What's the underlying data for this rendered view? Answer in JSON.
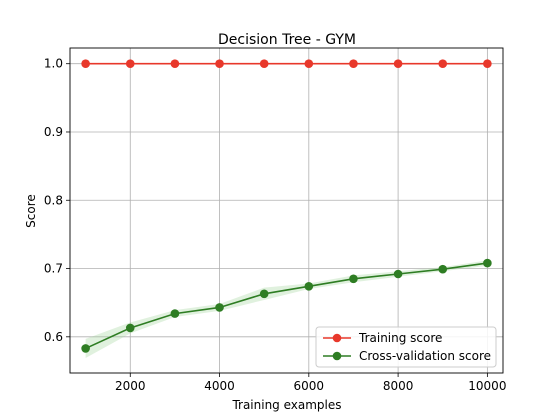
{
  "chart_data": {
    "type": "line",
    "title": "Decision Tree - GYM",
    "xlabel": "Training examples",
    "ylabel": "Score",
    "xlim": [
      650,
      10350
    ],
    "ylim": [
      0.547,
      1.023
    ],
    "xticks": [
      2000,
      4000,
      6000,
      8000,
      10000
    ],
    "yticks": [
      0.6,
      0.7,
      0.8,
      0.9,
      1.0
    ],
    "xtick_labels": [
      "2000",
      "4000",
      "6000",
      "8000",
      "10000"
    ],
    "ytick_labels": [
      "0.6",
      "0.7",
      "0.8",
      "0.9",
      "1.0"
    ],
    "grid": true,
    "legend_position": "lower-right",
    "x": [
      1000,
      2000,
      3000,
      4000,
      5000,
      6000,
      7000,
      8000,
      9000,
      10000
    ],
    "series": [
      {
        "name": "Training score",
        "color": "#e8382b",
        "values": [
          1.0,
          1.0,
          1.0,
          1.0,
          1.0,
          1.0,
          1.0,
          1.0,
          1.0,
          1.0
        ]
      },
      {
        "name": "Cross-validation score",
        "color": "#2e7d23",
        "band_color": "#a5d6a0",
        "values": [
          0.583,
          0.613,
          0.634,
          0.643,
          0.663,
          0.674,
          0.685,
          0.692,
          0.699,
          0.708
        ],
        "band_lower": [
          0.569,
          0.605,
          0.629,
          0.638,
          0.654,
          0.67,
          0.68,
          0.688,
          0.696,
          0.704
        ],
        "band_upper": [
          0.597,
          0.621,
          0.639,
          0.648,
          0.672,
          0.678,
          0.69,
          0.696,
          0.702,
          0.712
        ]
      }
    ]
  }
}
